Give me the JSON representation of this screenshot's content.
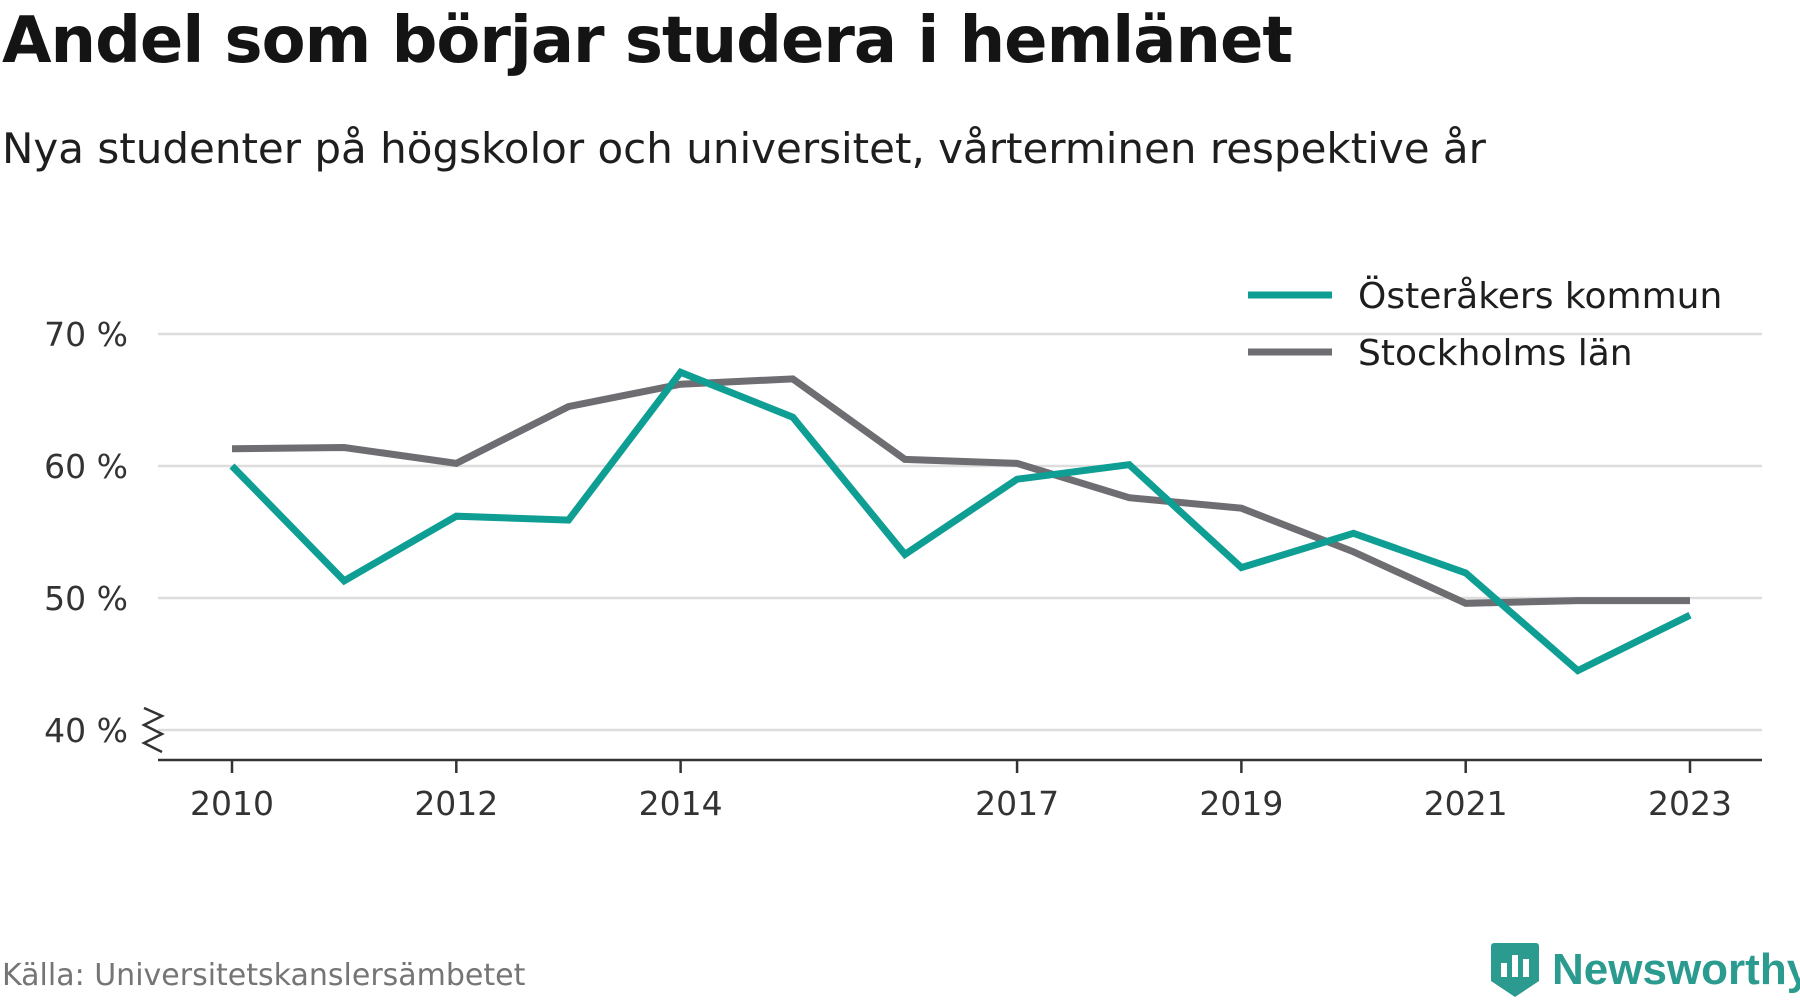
{
  "header": {
    "title": "Andel som börjar studera i hemlänet",
    "subtitle": "Nya studenter på högskolor och universitet, vårterminen respektive år"
  },
  "footer": {
    "source": "Källa: Universitetskanslersämbetet",
    "brand": "Newsworthy",
    "brand_icon": "bar-chart-shield-icon"
  },
  "colors": {
    "osteraker": "#0e9e93",
    "stockholm": "#6e6d72",
    "grid": "#dddddd",
    "axis": "#333333",
    "brand": "#2c9b8f"
  },
  "chart_data": {
    "type": "line",
    "title": "Andel som börjar studera i hemlänet",
    "subtitle": "Nya studenter på högskolor och universitet, vårterminen respektive år",
    "xlabel": "",
    "ylabel": "",
    "x": [
      2010,
      2011,
      2012,
      2013,
      2014,
      2015,
      2016,
      2017,
      2018,
      2019,
      2020,
      2021,
      2022,
      2023
    ],
    "x_ticks": [
      2010,
      2012,
      2014,
      2017,
      2019,
      2021,
      2023
    ],
    "y_ticks": [
      40,
      50,
      60,
      70
    ],
    "y_tick_labels": [
      "40 %",
      "50 %",
      "60 %",
      "70 %"
    ],
    "ylim": [
      40,
      70
    ],
    "y_axis_break": true,
    "grid": true,
    "legend_position": "top-right",
    "series": [
      {
        "name": "Österåkers kommun",
        "color": "#0e9e93",
        "values": [
          60.0,
          51.3,
          56.2,
          55.9,
          67.1,
          63.7,
          53.3,
          59.0,
          60.1,
          52.3,
          54.9,
          51.9,
          44.5,
          48.7
        ]
      },
      {
        "name": "Stockholms län",
        "color": "#6e6d72",
        "values": [
          61.3,
          61.4,
          60.2,
          64.5,
          66.2,
          66.6,
          60.5,
          60.2,
          57.6,
          56.8,
          53.5,
          49.6,
          49.8,
          49.8
        ]
      }
    ]
  }
}
